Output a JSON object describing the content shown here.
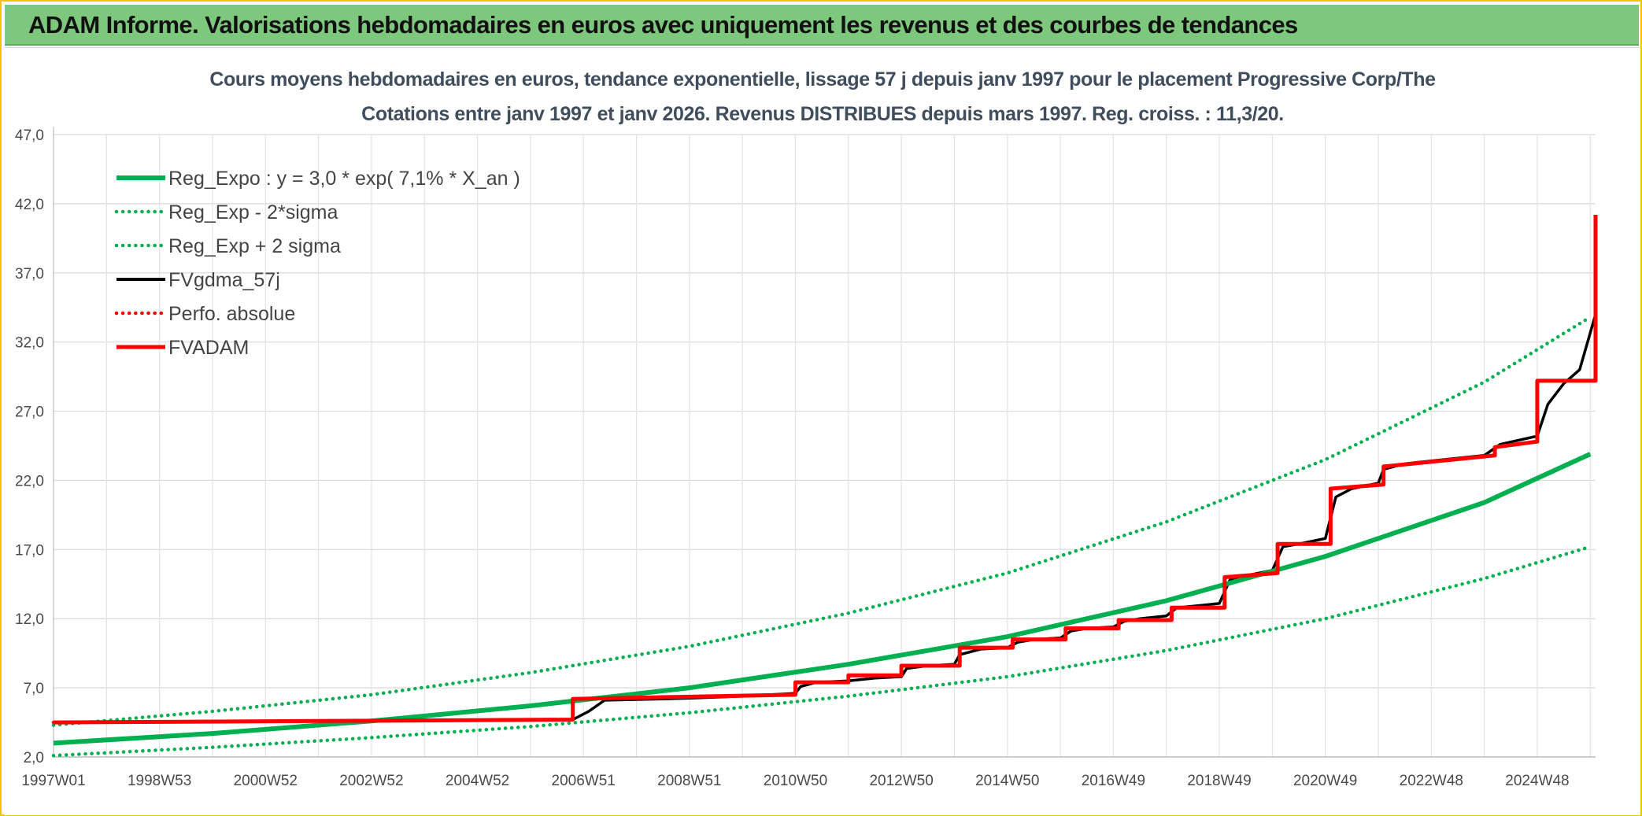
{
  "banner": {
    "title": "ADAM Informe. Valorisations hebdomadaires en euros avec uniquement les revenus et des courbes de tendances"
  },
  "chart_data": {
    "type": "line",
    "title": "Cours moyens hebdomadaires en euros, tendance exponentielle, lissage 57 j depuis janv 1997 pour le placement Progressive Corp/The",
    "subtitle": "Cotations entre janv 1997 et janv 2026. Revenus DISTRIBUES depuis mars 1997. Reg. croiss. : 11,3/20.",
    "xlabel": "",
    "ylabel": "",
    "ylim": [
      2.0,
      47.0
    ],
    "xlim": [
      1997.0,
      2026.1
    ],
    "y_ticks": [
      "2,0",
      "7,0",
      "12,0",
      "17,0",
      "22,0",
      "27,0",
      "32,0",
      "37,0",
      "42,0",
      "47,0"
    ],
    "x_ticks": [
      {
        "label": "1997W01",
        "x": 1997.0
      },
      {
        "label": "1998W53",
        "x": 1999.0
      },
      {
        "label": "2000W52",
        "x": 2001.0
      },
      {
        "label": "2002W52",
        "x": 2003.0
      },
      {
        "label": "2004W52",
        "x": 2005.0
      },
      {
        "label": "2006W51",
        "x": 2007.0
      },
      {
        "label": "2008W51",
        "x": 2009.0
      },
      {
        "label": "2010W50",
        "x": 2011.0
      },
      {
        "label": "2012W50",
        "x": 2013.0
      },
      {
        "label": "2014W50",
        "x": 2015.0
      },
      {
        "label": "2016W49",
        "x": 2017.0
      },
      {
        "label": "2018W49",
        "x": 2019.0
      },
      {
        "label": "2020W49",
        "x": 2021.0
      },
      {
        "label": "2022W48",
        "x": 2023.0
      },
      {
        "label": "2024W48",
        "x": 2025.0
      }
    ],
    "grid": true,
    "legend_position": "top-left",
    "series": [
      {
        "name": "Reg_Expo : y = 3,0 * exp( 7,1% *  X_an )",
        "color": "#00b050",
        "style": "solid",
        "points": [
          [
            1997.0,
            3.0
          ],
          [
            2000.0,
            3.7
          ],
          [
            2003.0,
            4.6
          ],
          [
            2006.0,
            5.7
          ],
          [
            2009.0,
            7.0
          ],
          [
            2012.0,
            8.7
          ],
          [
            2015.0,
            10.7
          ],
          [
            2018.0,
            13.3
          ],
          [
            2021.0,
            16.5
          ],
          [
            2024.0,
            20.4
          ],
          [
            2026.0,
            23.9
          ]
        ]
      },
      {
        "name": "Reg_Exp - 2*sigma",
        "color": "#00b050",
        "style": "dotted",
        "points": [
          [
            1997.0,
            2.1
          ],
          [
            2000.0,
            2.7
          ],
          [
            2003.0,
            3.4
          ],
          [
            2006.0,
            4.2
          ],
          [
            2009.0,
            5.2
          ],
          [
            2012.0,
            6.4
          ],
          [
            2015.0,
            7.8
          ],
          [
            2018.0,
            9.7
          ],
          [
            2021.0,
            12.0
          ],
          [
            2024.0,
            14.9
          ],
          [
            2026.0,
            17.2
          ]
        ]
      },
      {
        "name": "Reg_Exp + 2 sigma",
        "color": "#00b050",
        "style": "dotted",
        "points": [
          [
            1997.0,
            4.3
          ],
          [
            2000.0,
            5.3
          ],
          [
            2003.0,
            6.5
          ],
          [
            2006.0,
            8.1
          ],
          [
            2009.0,
            10.0
          ],
          [
            2012.0,
            12.4
          ],
          [
            2015.0,
            15.3
          ],
          [
            2018.0,
            19.0
          ],
          [
            2021.0,
            23.5
          ],
          [
            2024.0,
            29.1
          ],
          [
            2026.0,
            33.8
          ]
        ]
      },
      {
        "name": "FVgdma_57j",
        "color": "#000000",
        "style": "solid",
        "points": [
          [
            1997.0,
            4.5
          ],
          [
            2002.0,
            4.6
          ],
          [
            2006.8,
            4.7
          ],
          [
            2007.1,
            5.3
          ],
          [
            2007.4,
            6.1
          ],
          [
            2008.5,
            6.2
          ],
          [
            2009.0,
            6.25
          ],
          [
            2010.0,
            6.4
          ],
          [
            2011.0,
            6.6
          ],
          [
            2011.1,
            7.1
          ],
          [
            2011.4,
            7.4
          ],
          [
            2012.0,
            7.5
          ],
          [
            2012.5,
            7.7
          ],
          [
            2013.0,
            7.8
          ],
          [
            2013.1,
            8.4
          ],
          [
            2013.5,
            8.6
          ],
          [
            2014.0,
            8.7
          ],
          [
            2014.1,
            9.4
          ],
          [
            2014.5,
            9.8
          ],
          [
            2015.0,
            9.9
          ],
          [
            2015.2,
            10.3
          ],
          [
            2015.5,
            10.5
          ],
          [
            2016.0,
            10.6
          ],
          [
            2016.2,
            11.1
          ],
          [
            2016.5,
            11.3
          ],
          [
            2017.0,
            11.4
          ],
          [
            2017.2,
            11.8
          ],
          [
            2017.5,
            12.0
          ],
          [
            2018.0,
            12.2
          ],
          [
            2018.2,
            12.8
          ],
          [
            2018.5,
            12.9
          ],
          [
            2019.0,
            13.1
          ],
          [
            2019.2,
            14.8
          ],
          [
            2019.5,
            15.1
          ],
          [
            2020.0,
            15.5
          ],
          [
            2020.2,
            17.2
          ],
          [
            2020.5,
            17.4
          ],
          [
            2021.0,
            17.8
          ],
          [
            2021.2,
            20.8
          ],
          [
            2021.5,
            21.4
          ],
          [
            2022.0,
            21.8
          ],
          [
            2022.1,
            22.8
          ],
          [
            2022.5,
            23.2
          ],
          [
            2023.0,
            23.4
          ],
          [
            2024.0,
            23.8
          ],
          [
            2024.3,
            24.6
          ],
          [
            2025.0,
            25.2
          ],
          [
            2025.2,
            27.5
          ],
          [
            2025.5,
            29.0
          ],
          [
            2025.8,
            30.0
          ],
          [
            2026.1,
            34.0
          ]
        ]
      },
      {
        "name": "Perfo. absolue",
        "color": "#ff0000",
        "style": "dotted",
        "points": [
          [
            1997.0,
            4.5
          ],
          [
            2002.0,
            4.6
          ],
          [
            2006.8,
            4.7
          ],
          [
            2006.8,
            6.2
          ],
          [
            2011.0,
            6.5
          ],
          [
            2011.0,
            7.4
          ],
          [
            2012.0,
            7.4
          ],
          [
            2012.0,
            7.9
          ],
          [
            2013.0,
            7.9
          ],
          [
            2013.0,
            8.6
          ],
          [
            2014.1,
            8.6
          ],
          [
            2014.1,
            9.9
          ],
          [
            2015.1,
            9.9
          ],
          [
            2015.1,
            10.5
          ],
          [
            2016.1,
            10.5
          ],
          [
            2016.1,
            11.3
          ],
          [
            2017.1,
            11.3
          ],
          [
            2017.1,
            11.9
          ],
          [
            2018.1,
            11.9
          ],
          [
            2018.1,
            12.8
          ],
          [
            2019.1,
            12.8
          ],
          [
            2019.1,
            15.0
          ],
          [
            2020.1,
            15.3
          ],
          [
            2020.1,
            17.4
          ],
          [
            2021.1,
            17.4
          ],
          [
            2021.1,
            21.4
          ],
          [
            2022.1,
            21.7
          ],
          [
            2022.1,
            23.0
          ],
          [
            2024.2,
            23.8
          ],
          [
            2024.2,
            24.4
          ],
          [
            2025.0,
            24.8
          ],
          [
            2025.0,
            29.2
          ],
          [
            2026.1,
            29.2
          ],
          [
            2026.1,
            41.2
          ]
        ]
      },
      {
        "name": "FVADAM",
        "color": "#ff0000",
        "style": "solid",
        "points": [
          [
            1997.0,
            4.5
          ],
          [
            2002.0,
            4.6
          ],
          [
            2006.8,
            4.7
          ],
          [
            2006.8,
            6.2
          ],
          [
            2011.0,
            6.5
          ],
          [
            2011.0,
            7.4
          ],
          [
            2012.0,
            7.4
          ],
          [
            2012.0,
            7.9
          ],
          [
            2013.0,
            7.9
          ],
          [
            2013.0,
            8.6
          ],
          [
            2014.1,
            8.6
          ],
          [
            2014.1,
            9.9
          ],
          [
            2015.1,
            9.9
          ],
          [
            2015.1,
            10.5
          ],
          [
            2016.1,
            10.5
          ],
          [
            2016.1,
            11.3
          ],
          [
            2017.1,
            11.3
          ],
          [
            2017.1,
            11.9
          ],
          [
            2018.1,
            11.9
          ],
          [
            2018.1,
            12.8
          ],
          [
            2019.1,
            12.8
          ],
          [
            2019.1,
            15.0
          ],
          [
            2020.1,
            15.3
          ],
          [
            2020.1,
            17.4
          ],
          [
            2021.1,
            17.4
          ],
          [
            2021.1,
            21.4
          ],
          [
            2022.1,
            21.7
          ],
          [
            2022.1,
            23.0
          ],
          [
            2024.2,
            23.8
          ],
          [
            2024.2,
            24.4
          ],
          [
            2025.0,
            24.8
          ],
          [
            2025.0,
            29.2
          ],
          [
            2026.1,
            29.2
          ],
          [
            2026.1,
            41.2
          ]
        ]
      }
    ]
  }
}
